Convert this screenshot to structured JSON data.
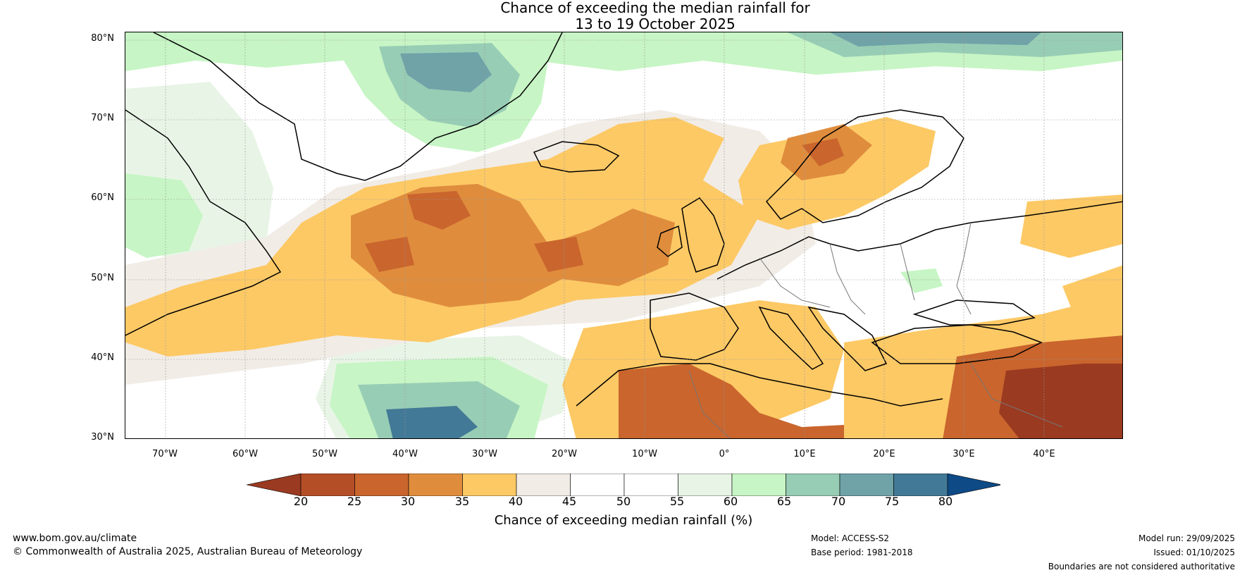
{
  "title": {
    "line1": "Chance of exceeding the median rainfall for",
    "line2": "13 to 19 October 2025"
  },
  "map": {
    "lat_labels": [
      "80°N",
      "70°N",
      "60°N",
      "50°N",
      "40°N",
      "30°N"
    ],
    "lon_labels": [
      "70°W",
      "60°W",
      "50°W",
      "40°W",
      "30°W",
      "20°W",
      "10°W",
      "0°",
      "10°E",
      "20°E",
      "30°E",
      "40°E"
    ],
    "lat_values": [
      80,
      70,
      60,
      50,
      40,
      30
    ],
    "lon_values": [
      -70,
      -60,
      -50,
      -40,
      -30,
      -20,
      -10,
      0,
      10,
      20,
      30,
      40
    ],
    "extent": {
      "lon_min": -75,
      "lon_max": 50,
      "lat_min": 30,
      "lat_max": 81
    },
    "color_land_outline": "#000000",
    "color_border": "#777777"
  },
  "colorbar": {
    "title": "Chance of exceeding median rainfall (%)",
    "ticks": [
      "20",
      "25",
      "30",
      "35",
      "40",
      "45",
      "50",
      "55",
      "60",
      "65",
      "70",
      "75",
      "80"
    ],
    "colors": [
      "#9a3a20",
      "#b44e27",
      "#c9652d",
      "#df8d3d",
      "#fdc965",
      "#f1ece6",
      "#ffffff",
      "#ffffff",
      "#e8f5e6",
      "#c7f5c5",
      "#98cdb5",
      "#6fa3a8",
      "#427996",
      "#0e4a86"
    ]
  },
  "footer": {
    "website": "www.bom.gov.au/climate",
    "copyright": "© Commonwealth of Australia 2025, Australian Bureau of Meteorology",
    "model": "Model: ACCESS-S2",
    "base_period": "Base period: 1981-2018",
    "model_run": "Model run: 29/09/2025",
    "issued": "Issued: 01/10/2025",
    "disclaimer": "Boundaries are not considered authoritative"
  }
}
